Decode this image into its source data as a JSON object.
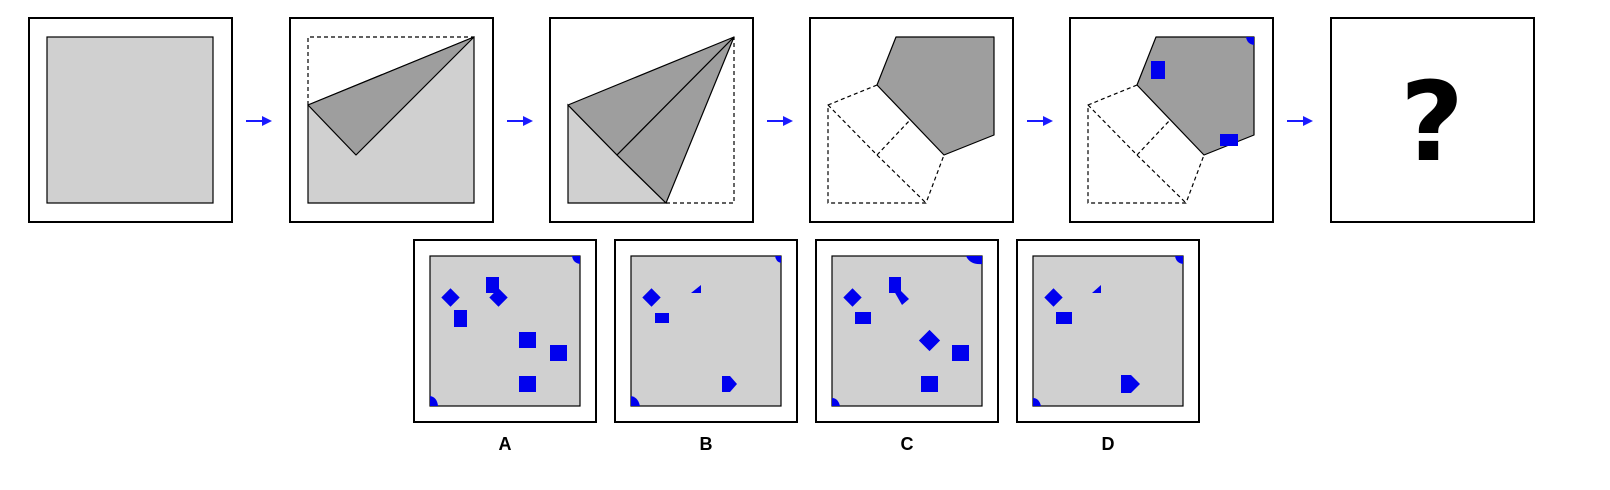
{
  "puzzle": {
    "question_mark": "?",
    "hole_color": "#0000ee",
    "arrow_color": "#1a1aff",
    "paper_color": "#d0d0d0",
    "folded_color": "#9e9e9e"
  },
  "options": [
    {
      "label": "A"
    },
    {
      "label": "B"
    },
    {
      "label": "C"
    },
    {
      "label": "D"
    }
  ]
}
